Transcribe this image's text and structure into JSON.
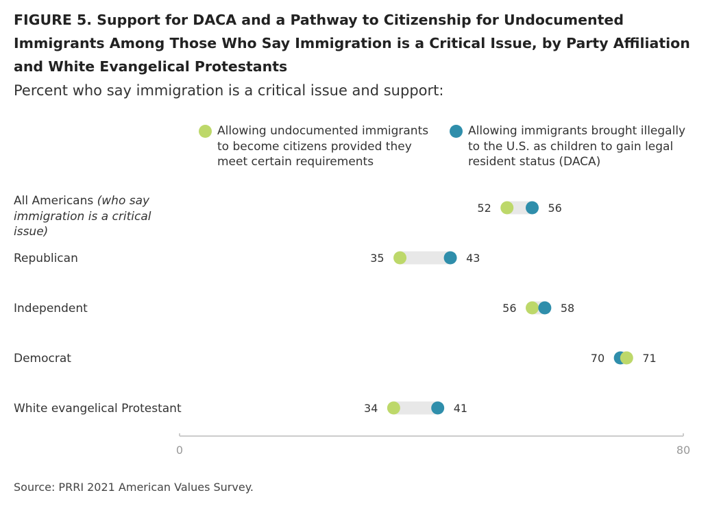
{
  "title": "FIGURE 5.  Support for DACA and a Pathway to Citizenship for Undocumented Immigrants Among Those Who Say Immigration is a Critical Issue, by Party Affiliation and White Evangelical Protestants",
  "subtitle": "Percent who say immigration is a critical issue and support:",
  "source": "Source: PRRI 2021 American Values Survey.",
  "colors": {
    "citizenship": "#bdd86a",
    "daca": "#2f8eab",
    "connector": "#e8e8e8",
    "axis": "#cccccc"
  },
  "chart_data": {
    "type": "dot",
    "xlim": [
      0,
      80
    ],
    "x_ticks": [
      "0",
      "80"
    ],
    "categories": [
      {
        "label": "All Americans ",
        "note": "(who say immigration is a critical issue)"
      },
      {
        "label": "Republican",
        "note": ""
      },
      {
        "label": "Independent",
        "note": ""
      },
      {
        "label": "Democrat",
        "note": ""
      },
      {
        "label": "White evangelical Protestant",
        "note": ""
      }
    ],
    "series": [
      {
        "key": "citizenship",
        "name": "Allowing undocumented immigrants to become citizens provided they meet certain requirements",
        "values": [
          52,
          35,
          56,
          71,
          34
        ]
      },
      {
        "key": "daca",
        "name": "Allowing immigrants brought illegally to the U.S. as children to gain legal resident status (DACA)",
        "values": [
          56,
          43,
          58,
          70,
          41
        ]
      }
    ]
  }
}
